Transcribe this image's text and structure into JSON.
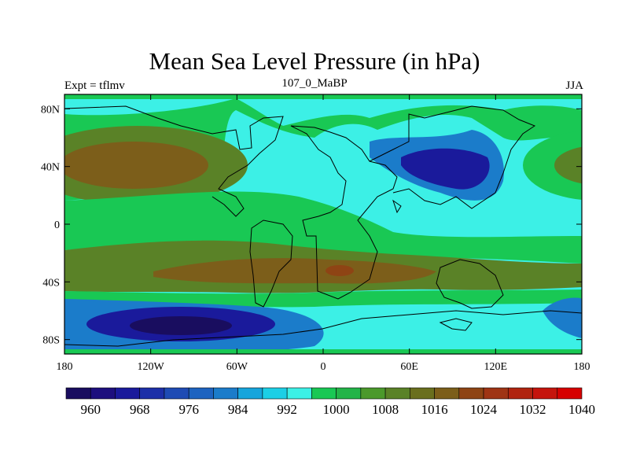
{
  "title": "Mean Sea Level Pressure (in hPa)",
  "left_string": "Expt = tflmv",
  "center_string": "107_0_MaBP",
  "right_string": "JJA",
  "axes": {
    "lon_labels": [
      "180",
      "120W",
      "60W",
      "0",
      "60E",
      "120E",
      "180"
    ],
    "lat_labels": [
      "80N",
      "40N",
      "0",
      "40S",
      "80S"
    ]
  },
  "colorbar": {
    "labels": [
      "960",
      "968",
      "976",
      "984",
      "992",
      "1000",
      "1008",
      "1016",
      "1024",
      "1032",
      "1040"
    ],
    "colors": [
      "#190d5f",
      "#1d0f7e",
      "#1a1a9b",
      "#1c2fa8",
      "#1e4bb4",
      "#1d63c0",
      "#1b7cca",
      "#16a5dc",
      "#1ccfe6",
      "#3cf0e6",
      "#19c854",
      "#23b448",
      "#4b992b",
      "#5a8227",
      "#6a6f1e",
      "#7c5e1a",
      "#8e4414",
      "#9f3414",
      "#b0240f",
      "#c5140c",
      "#d60000"
    ]
  },
  "palette": {
    "land_outline": "#000000",
    "cyan": "#3cf0e6",
    "green": "#19c854",
    "olive": "#5a8227",
    "brown": "#7c5e1a",
    "rust": "#8e4414",
    "blue": "#1b7cca",
    "dark_blue": "#1a1a9b",
    "navy": "#190d5f"
  }
}
